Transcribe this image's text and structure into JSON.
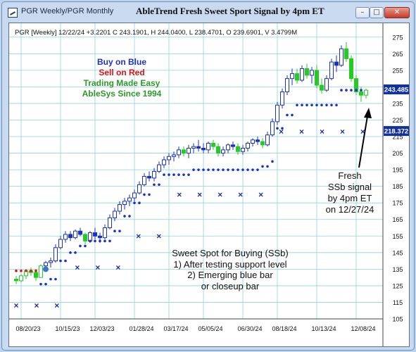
{
  "window": {
    "tab_label": "PGR Weekly/PGR Monthly",
    "title": "AbleTrend Fresh Sweet Sport Signal by 4pm ET",
    "minimize_glyph": "–",
    "maximize_glyph": "□",
    "close_glyph": "✕"
  },
  "chart_data": {
    "type": "candlestick",
    "header": "PGR [Weekly] 12/22/24 +3.2201 C 243.1901, H 244.0400, L 238.4701, O 239.6901, V 3.4799M",
    "promo_lines": [
      {
        "text": "Buy on Blue",
        "color": "#1f2fcc"
      },
      {
        "text": "Sell on Red",
        "color": "#e01010"
      },
      {
        "text": "Trading Made Easy",
        "color": "#2a9a2a"
      },
      {
        "text": "AbleSys Since 1994",
        "color": "#2a9a2a"
      }
    ],
    "sweet_spot_lines": [
      "Sweet Spot for Buying (SSb)",
      "1) After testing support level",
      "2) Emerging blue bar",
      "or closeup bar"
    ],
    "callout_lines": [
      "Fresh",
      "SSb signal",
      "by 4pm ET",
      "on 12/27/24"
    ],
    "ylim": [
      105,
      280
    ],
    "y_ticks": [
      105,
      115,
      125,
      135,
      145,
      155,
      165,
      175,
      185,
      195,
      205,
      215,
      225,
      235,
      245,
      255,
      265,
      275
    ],
    "x_ticks": [
      {
        "label": "08/20/23",
        "week": 1
      },
      {
        "label": "10/15/23",
        "week": 9
      },
      {
        "label": "12/03/23",
        "week": 16
      },
      {
        "label": "01/28/24",
        "week": 24
      },
      {
        "label": "03/17/24",
        "week": 31
      },
      {
        "label": "05/05/24",
        "week": 38
      },
      {
        "label": "06/30/24",
        "week": 46
      },
      {
        "label": "08/18/24",
        "week": 53
      },
      {
        "label": "10/13/24",
        "week": 61
      },
      {
        "label": "12/08/24",
        "week": 69
      }
    ],
    "current_price": {
      "label": "243.485",
      "value": 243.485,
      "color": "#1230a0"
    },
    "support_price": {
      "label": "218.372",
      "value": 218.372,
      "color": "#1230a0"
    },
    "candles": [
      [
        129,
        131,
        126,
        128,
        "g"
      ],
      [
        128,
        132,
        127,
        131,
        "g"
      ],
      [
        131,
        135,
        129,
        134,
        "g"
      ],
      [
        134,
        136,
        131,
        133,
        "g"
      ],
      [
        133,
        135,
        128,
        130,
        "g"
      ],
      [
        130,
        138,
        130,
        137,
        "g"
      ],
      [
        137,
        140,
        135,
        139,
        "b"
      ],
      [
        139,
        142,
        136,
        140,
        "b"
      ],
      [
        140,
        150,
        139,
        148,
        "b"
      ],
      [
        148,
        155,
        147,
        153,
        "b"
      ],
      [
        153,
        158,
        151,
        156,
        "b"
      ],
      [
        156,
        158,
        152,
        154,
        "b"
      ],
      [
        154,
        159,
        153,
        158,
        "b"
      ],
      [
        158,
        160,
        155,
        156,
        "b"
      ],
      [
        156,
        157,
        150,
        152,
        "g"
      ],
      [
        152,
        158,
        151,
        157,
        "b"
      ],
      [
        157,
        160,
        153,
        155,
        "b"
      ],
      [
        155,
        157,
        151,
        154,
        "b"
      ],
      [
        154,
        162,
        153,
        160,
        "b"
      ],
      [
        160,
        168,
        159,
        166,
        "b"
      ],
      [
        166,
        172,
        164,
        170,
        "b"
      ],
      [
        170,
        176,
        168,
        174,
        "b"
      ],
      [
        174,
        178,
        171,
        176,
        "b"
      ],
      [
        176,
        180,
        173,
        178,
        "b"
      ],
      [
        178,
        183,
        176,
        181,
        "b"
      ],
      [
        181,
        188,
        180,
        186,
        "b"
      ],
      [
        186,
        193,
        185,
        191,
        "b"
      ],
      [
        191,
        194,
        188,
        190,
        "b"
      ],
      [
        190,
        196,
        188,
        194,
        "b"
      ],
      [
        194,
        200,
        193,
        198,
        "b"
      ],
      [
        198,
        203,
        196,
        201,
        "b"
      ],
      [
        201,
        205,
        198,
        203,
        "b"
      ],
      [
        203,
        206,
        200,
        204,
        "b"
      ],
      [
        204,
        209,
        202,
        207,
        "b"
      ],
      [
        207,
        209,
        203,
        205,
        "g"
      ],
      [
        205,
        210,
        202,
        208,
        "b"
      ],
      [
        208,
        211,
        205,
        209,
        "b"
      ],
      [
        209,
        213,
        206,
        208,
        "b"
      ],
      [
        208,
        211,
        205,
        207,
        "b"
      ],
      [
        207,
        212,
        205,
        211,
        "b"
      ],
      [
        211,
        213,
        207,
        209,
        "g"
      ],
      [
        209,
        211,
        203,
        205,
        "g"
      ],
      [
        205,
        209,
        203,
        207,
        "b"
      ],
      [
        207,
        211,
        205,
        210,
        "b"
      ],
      [
        210,
        212,
        207,
        209,
        "b"
      ],
      [
        209,
        211,
        204,
        206,
        "g"
      ],
      [
        206,
        210,
        204,
        208,
        "b"
      ],
      [
        208,
        212,
        206,
        211,
        "b"
      ],
      [
        211,
        214,
        209,
        213,
        "b"
      ],
      [
        213,
        215,
        210,
        212,
        "b"
      ],
      [
        212,
        214,
        208,
        210,
        "g"
      ],
      [
        210,
        218,
        209,
        216,
        "b"
      ],
      [
        216,
        226,
        215,
        224,
        "b"
      ],
      [
        224,
        236,
        222,
        234,
        "b"
      ],
      [
        234,
        244,
        232,
        242,
        "b"
      ],
      [
        242,
        252,
        240,
        250,
        "b"
      ],
      [
        250,
        256,
        246,
        253,
        "b"
      ],
      [
        253,
        256,
        247,
        249,
        "g"
      ],
      [
        249,
        258,
        248,
        256,
        "b"
      ],
      [
        256,
        259,
        250,
        252,
        "g"
      ],
      [
        252,
        257,
        247,
        255,
        "b"
      ],
      [
        255,
        258,
        244,
        246,
        "g"
      ],
      [
        246,
        250,
        241,
        243,
        "g"
      ],
      [
        243,
        252,
        242,
        250,
        "b"
      ],
      [
        250,
        262,
        249,
        260,
        "b"
      ],
      [
        260,
        264,
        254,
        258,
        "b"
      ],
      [
        258,
        270,
        257,
        268,
        "b"
      ],
      [
        268,
        272,
        260,
        262,
        "g"
      ],
      [
        262,
        264,
        248,
        250,
        "g"
      ],
      [
        250,
        252,
        240,
        242,
        "g"
      ],
      [
        242,
        245,
        236,
        240,
        "g"
      ],
      [
        240,
        244,
        238,
        243,
        "g"
      ]
    ],
    "support_dots": [
      {
        "value": 134,
        "weeks": [
          0,
          1,
          2,
          3,
          4
        ],
        "color": "#e01010"
      },
      {
        "value": 126,
        "weeks": [
          5,
          6
        ]
      },
      {
        "value": 129,
        "weeks": [
          7,
          8
        ]
      },
      {
        "value": 140,
        "weeks": [
          9,
          10
        ]
      },
      {
        "value": 145,
        "weeks": [
          11,
          12
        ]
      },
      {
        "value": 149,
        "weeks": [
          13,
          14
        ]
      },
      {
        "value": 152,
        "weeks": [
          15,
          16,
          17,
          18,
          19
        ]
      },
      {
        "value": 158,
        "weeks": [
          20,
          21
        ]
      },
      {
        "value": 167,
        "weeks": [
          22,
          23
        ]
      },
      {
        "value": 175,
        "weeks": [
          24,
          25
        ]
      },
      {
        "value": 180,
        "weeks": [
          26,
          27
        ]
      },
      {
        "value": 186,
        "weeks": [
          28,
          29
        ]
      },
      {
        "value": 192,
        "weeks": [
          30,
          31,
          32,
          33,
          34,
          35
        ]
      },
      {
        "value": 195,
        "weeks": [
          36,
          37,
          38,
          39,
          40,
          41,
          42,
          43,
          44,
          45,
          46,
          47,
          48,
          49
        ]
      },
      {
        "value": 197,
        "weeks": [
          50,
          51
        ]
      },
      {
        "value": 200,
        "weeks": [
          52
        ]
      },
      {
        "value": 220,
        "weeks": [
          53,
          54
        ]
      },
      {
        "value": 228,
        "weeks": [
          55,
          56
        ]
      },
      {
        "value": 234,
        "weeks": [
          57,
          58,
          59,
          60,
          61,
          62,
          63,
          64,
          65
        ]
      },
      {
        "value": 243,
        "weeks": [
          66,
          67,
          68,
          69,
          70
        ]
      }
    ],
    "x_markers": [
      {
        "week": 0,
        "value": 113
      },
      {
        "week": 6,
        "value": 113
      },
      {
        "week": 12,
        "value": 113
      },
      {
        "week": 18,
        "value": 136
      },
      {
        "week": 24,
        "value": 136
      },
      {
        "week": 30,
        "value": 136
      },
      {
        "week": 36,
        "value": 155
      },
      {
        "week": 42,
        "value": 155
      },
      {
        "week": 48,
        "value": 180
      },
      {
        "week": 54,
        "value": 180
      },
      {
        "week": 60,
        "value": 180
      },
      {
        "week": 66,
        "value": 180
      },
      {
        "week": 72,
        "value": 180
      },
      {
        "week": 78,
        "value": 218
      },
      {
        "week": 84,
        "value": 218
      },
      {
        "week": 90,
        "value": 218
      },
      {
        "week": 96,
        "value": 218
      },
      {
        "week": 102,
        "value": 218
      }
    ],
    "circle_marker": {
      "week": 6,
      "value": 135
    },
    "colors": {
      "blue_bar": "#1a2fd0",
      "green_bar": "#22cc22",
      "dots": "#1a2fd0",
      "x_marker": "#1a2fb0",
      "grid": "#8fd3d8"
    }
  }
}
